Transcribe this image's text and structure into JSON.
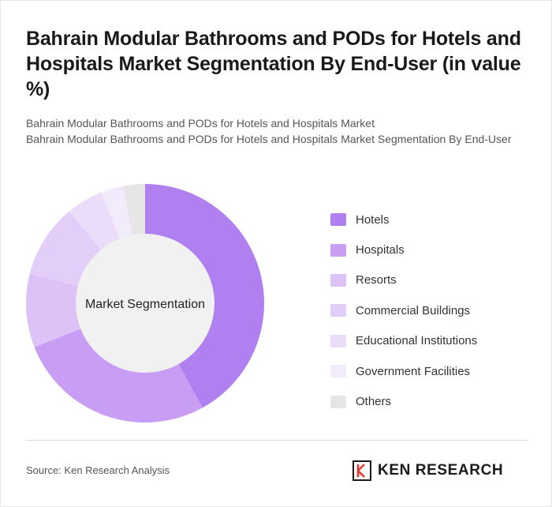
{
  "title": "Bahrain Modular Bathrooms and PODs for Hotels and Hospitals Market Segmentation By End-User (in value %)",
  "subtitle_line1": "Bahrain Modular Bathrooms and PODs for Hotels and Hospitals Market",
  "subtitle_line2": "Bahrain Modular Bathrooms and PODs for Hotels and Hospitals Market Segmentation By End-User",
  "chart_data": {
    "type": "pie",
    "donut": true,
    "center_label": "Market Segmentation",
    "legend_position": "right",
    "categories": [
      "Hotels",
      "Hospitals",
      "Resorts",
      "Commercial Buildings",
      "Educational Institutions",
      "Government Facilities",
      "Others"
    ],
    "values": [
      42,
      27,
      10,
      10,
      5,
      3,
      3
    ],
    "colors": [
      "#b07ff0",
      "#c79ef3",
      "#dcc2f7",
      "#e2cef8",
      "#ebdcfa",
      "#f2ebfb",
      "#e6e6e6"
    ]
  },
  "footer": {
    "source": "Source: Ken Research Analysis",
    "logo_text": "KEN RESEARCH"
  }
}
